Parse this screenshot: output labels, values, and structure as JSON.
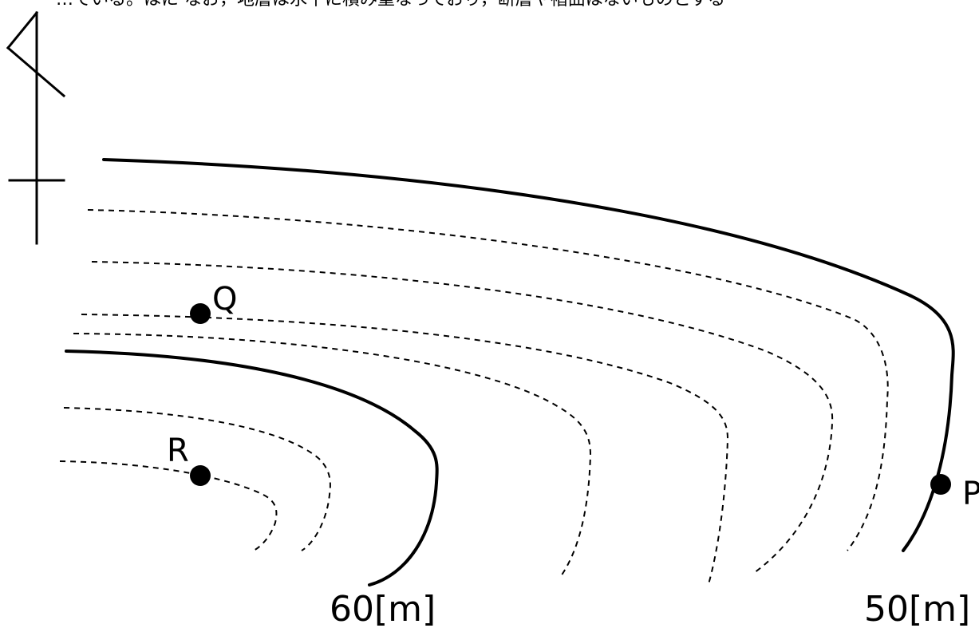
{
  "header_text": "…ている。はに なお，地層は水平に積み重なっており，断層や褶曲はないものとする",
  "points": {
    "P": "P",
    "Q": "Q",
    "R": "R"
  },
  "contour_labels": {
    "inner": "60[m]",
    "outer": "50[m]"
  },
  "icons": {
    "north_symbol": "north-arrow-icon"
  },
  "colors": {
    "line": "#000000",
    "background": "#ffffff"
  }
}
